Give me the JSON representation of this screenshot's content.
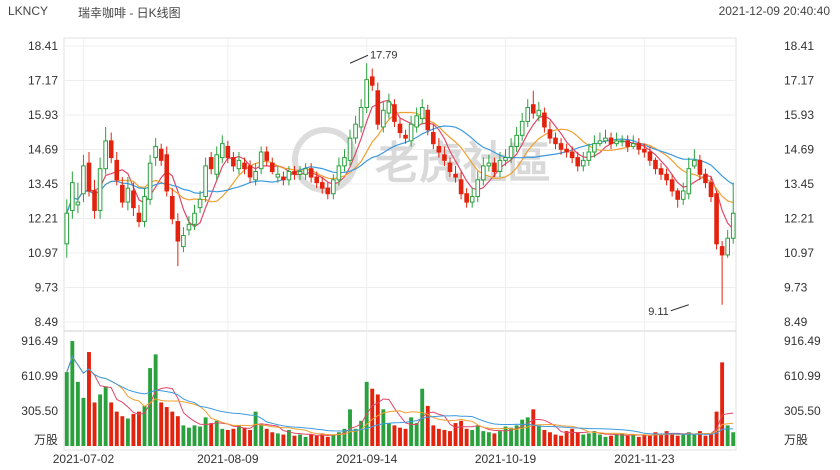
{
  "header": {
    "ticker": "LKNCY",
    "title": "瑞幸咖啡 - 日K线图",
    "timestamp": "2021-12-09 20:40:40"
  },
  "watermark": "老虎社區",
  "colors": {
    "up": "#2aa13d",
    "down": "#e2230e",
    "ma5": "#e0486a",
    "ma10": "#f0a030",
    "ma20": "#3d9ae0"
  },
  "chart_data": {
    "type": "candlestick",
    "price_axis": {
      "ticks": [
        "18.41",
        "17.17",
        "15.93",
        "14.69",
        "13.45",
        "12.21",
        "10.97",
        "9.73",
        "8.49"
      ],
      "range": [
        8.49,
        18.41
      ]
    },
    "volume_axis": {
      "ticks": [
        "916.49",
        "610.99",
        "305.50"
      ],
      "unit": "万股",
      "range": [
        0,
        916.49
      ]
    },
    "x_ticks": [
      {
        "label": "2021-07-02",
        "index": 3
      },
      {
        "label": "2021-08-09",
        "index": 29
      },
      {
        "label": "2021-09-14",
        "index": 54
      },
      {
        "label": "2021-10-19",
        "index": 79
      },
      {
        "label": "2021-11-23",
        "index": 104
      }
    ],
    "annotations": [
      {
        "label": "17.79",
        "index": 51,
        "price": 17.79
      },
      {
        "label": "9.11",
        "index": 112,
        "price": 9.11
      }
    ],
    "closes": [
      12.4,
      13.5,
      12.8,
      14.1,
      13.2,
      12.5,
      14.0,
      15.0,
      14.4,
      13.6,
      12.8,
      13.3,
      12.6,
      12.1,
      13.0,
      14.2,
      14.8,
      14.3,
      13.2,
      12.2,
      11.4,
      11.6,
      12.0,
      12.4,
      12.9,
      14.1,
      14.0,
      14.5,
      14.9,
      14.4,
      14.1,
      14.3,
      14.0,
      13.7,
      13.9,
      14.6,
      14.3,
      13.9,
      13.8,
      13.6,
      13.9,
      13.8,
      13.9,
      14.0,
      13.7,
      13.5,
      13.3,
      13.1,
      13.6,
      14.1,
      14.4,
      15.1,
      15.6,
      16.2,
      17.2,
      17.0,
      15.6,
      16.1,
      16.4,
      15.7,
      15.3,
      15.1,
      15.6,
      15.9,
      16.2,
      15.4,
      14.9,
      14.6,
      14.3,
      13.9,
      13.7,
      13.1,
      12.8,
      13.0,
      13.6,
      14.1,
      14.2,
      13.9,
      14.3,
      14.4,
      14.8,
      15.2,
      15.7,
      16.2,
      16.0,
      16.1,
      15.5,
      15.1,
      14.9,
      14.7,
      14.6,
      14.4,
      14.1,
      14.3,
      14.6,
      14.9,
      15.0,
      15.1,
      14.9,
      15.0,
      15.0,
      14.8,
      14.9,
      14.7,
      14.6,
      14.3,
      14.0,
      13.8,
      13.6,
      13.2,
      12.9,
      13.2,
      14.0,
      14.3,
      13.8,
      13.5,
      13.0,
      11.3,
      10.9,
      11.5,
      12.4
    ],
    "opens": [
      11.3,
      12.5,
      12.7,
      13.1,
      14.2,
      13.2,
      12.5,
      14.0,
      15.0,
      14.3,
      13.4,
      12.8,
      13.2,
      12.4,
      12.1,
      12.9,
      14.4,
      14.7,
      14.5,
      13.0,
      12.1,
      11.2,
      11.8,
      12.0,
      12.6,
      13.0,
      14.4,
      13.8,
      14.4,
      14.8,
      14.4,
      14.0,
      14.2,
      14.1,
      13.6,
      14.0,
      14.6,
      14.2,
      13.7,
      13.7,
      13.6,
      13.9,
      13.8,
      13.8,
      14.0,
      13.7,
      13.5,
      13.3,
      13.1,
      13.6,
      14.1,
      14.3,
      15.1,
      15.5,
      16.2,
      17.3,
      16.8,
      15.5,
      16.0,
      16.3,
      15.6,
      15.2,
      15.0,
      15.5,
      15.8,
      16.1,
      15.3,
      14.8,
      14.5,
      14.2,
      13.8,
      13.6,
      13.1,
      12.8,
      13.0,
      13.6,
      14.1,
      14.2,
      13.9,
      14.3,
      14.4,
      14.8,
      15.2,
      15.7,
      16.3,
      15.9,
      16.0,
      15.4,
      15.1,
      14.9,
      14.7,
      14.6,
      14.4,
      14.1,
      14.3,
      14.6,
      14.9,
      15.0,
      15.1,
      14.9,
      15.0,
      15.0,
      14.8,
      14.9,
      14.7,
      14.6,
      14.3,
      14.0,
      13.8,
      13.6,
      13.2,
      12.9,
      13.1,
      14.1,
      14.3,
      13.8,
      13.5,
      13.1,
      11.2,
      10.9,
      11.5
    ],
    "highs": [
      12.9,
      13.9,
      13.5,
      14.5,
      14.6,
      13.6,
      14.4,
      15.5,
      15.3,
      14.6,
      13.7,
      13.7,
      13.5,
      12.7,
      13.3,
      14.5,
      15.1,
      14.9,
      14.8,
      13.3,
      12.4,
      11.9,
      12.3,
      12.7,
      13.2,
      14.4,
      14.6,
      14.8,
      15.2,
      15.0,
      14.6,
      14.6,
      14.4,
      14.3,
      14.2,
      14.8,
      14.8,
      14.4,
      14.1,
      13.9,
      14.1,
      14.1,
      14.1,
      14.2,
      14.2,
      13.9,
      13.7,
      13.5,
      13.8,
      14.4,
      14.7,
      15.4,
      15.9,
      16.5,
      17.79,
      17.6,
      17.1,
      16.4,
      16.7,
      16.5,
      15.8,
      15.4,
      15.9,
      16.2,
      16.5,
      16.3,
      15.6,
      15.1,
      14.8,
      14.4,
      14.1,
      13.9,
      13.3,
      13.3,
      13.9,
      14.4,
      14.5,
      14.4,
      14.6,
      14.7,
      15.1,
      15.5,
      16.0,
      16.5,
      16.8,
      16.4,
      16.2,
      15.7,
      15.3,
      15.1,
      14.9,
      14.8,
      14.6,
      14.6,
      14.9,
      15.2,
      15.3,
      15.4,
      15.3,
      15.3,
      15.2,
      15.2,
      15.2,
      15.1,
      14.9,
      14.8,
      14.4,
      14.2,
      14.0,
      13.8,
      13.3,
      13.5,
      14.4,
      14.7,
      14.5,
      14.0,
      13.7,
      13.2,
      11.4,
      11.8,
      13.5
    ],
    "lows": [
      10.8,
      12.2,
      12.4,
      12.8,
      13.0,
      12.2,
      12.2,
      13.8,
      14.2,
      13.4,
      12.6,
      12.5,
      12.3,
      11.9,
      11.9,
      12.7,
      14.1,
      14.1,
      13.0,
      12.0,
      10.5,
      11.0,
      11.6,
      11.8,
      12.4,
      12.8,
      13.8,
      13.6,
      14.2,
      14.2,
      13.9,
      13.8,
      13.8,
      13.5,
      13.4,
      13.8,
      14.1,
      13.8,
      13.5,
      13.4,
      13.4,
      13.6,
      13.6,
      13.6,
      13.5,
      13.3,
      13.1,
      12.9,
      12.9,
      13.4,
      13.9,
      14.1,
      14.9,
      15.3,
      16.0,
      16.8,
      15.4,
      15.3,
      15.8,
      15.5,
      15.1,
      14.9,
      14.8,
      15.3,
      15.6,
      15.2,
      14.7,
      14.4,
      14.1,
      13.7,
      13.5,
      12.9,
      12.6,
      12.6,
      12.8,
      13.4,
      13.9,
      13.7,
      13.7,
      14.1,
      14.2,
      14.6,
      15.0,
      15.5,
      15.8,
      15.7,
      15.3,
      14.9,
      14.7,
      14.5,
      14.4,
      14.2,
      13.9,
      13.9,
      14.1,
      14.4,
      14.8,
      14.9,
      14.7,
      14.8,
      14.8,
      14.6,
      14.7,
      14.5,
      14.4,
      14.1,
      13.8,
      13.6,
      13.4,
      13.0,
      12.6,
      12.7,
      12.9,
      14.0,
      13.6,
      13.3,
      12.8,
      11.1,
      9.11,
      10.8,
      11.3
    ],
    "volumes": [
      645,
      916,
      560,
      420,
      820,
      380,
      450,
      520,
      380,
      300,
      260,
      240,
      280,
      300,
      350,
      680,
      800,
      380,
      340,
      300,
      260,
      180,
      160,
      180,
      170,
      250,
      200,
      220,
      150,
      140,
      150,
      180,
      160,
      140,
      300,
      190,
      150,
      120,
      110,
      100,
      140,
      90,
      100,
      80,
      100,
      90,
      110,
      80,
      100,
      120,
      150,
      320,
      150,
      220,
      560,
      500,
      450,
      320,
      200,
      180,
      160,
      150,
      250,
      200,
      500,
      350,
      180,
      150,
      140,
      130,
      200,
      220,
      150,
      140,
      180,
      130,
      120,
      110,
      130,
      170,
      160,
      180,
      230,
      250,
      320,
      180,
      140,
      120,
      100,
      90,
      130,
      150,
      120,
      100,
      110,
      130,
      100,
      80,
      90,
      100,
      110,
      90,
      100,
      80,
      100,
      90,
      120,
      100,
      130,
      110,
      90,
      100,
      120,
      100,
      130,
      90,
      110,
      300,
      730,
      180,
      120
    ]
  }
}
